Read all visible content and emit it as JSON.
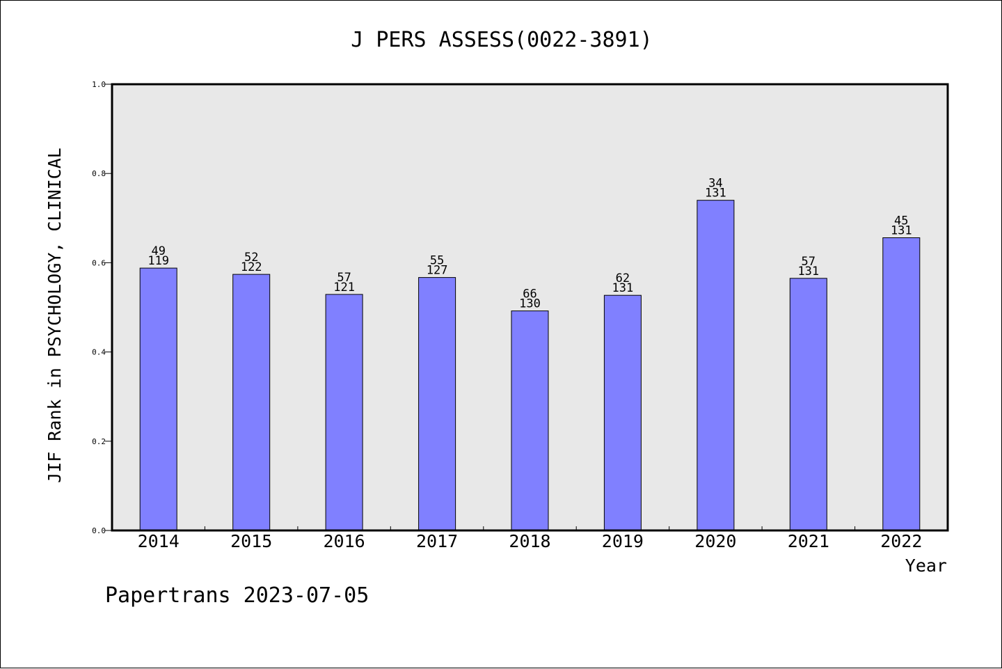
{
  "chart_data": {
    "type": "bar",
    "title": "J PERS ASSESS(0022-3891)",
    "xlabel": "Year",
    "ylabel": "JIF Rank in PSYCHOLOGY, CLINICAL",
    "ylim": [
      0.0,
      1.0
    ],
    "yticks": [
      "0.0",
      "0.2",
      "0.4",
      "0.6",
      "0.8",
      "1.0"
    ],
    "categories": [
      "2014",
      "2015",
      "2016",
      "2017",
      "2018",
      "2019",
      "2020",
      "2021",
      "2022"
    ],
    "values": [
      0.588,
      0.574,
      0.529,
      0.567,
      0.492,
      0.527,
      0.74,
      0.565,
      0.656
    ],
    "rank": [
      "49",
      "52",
      "57",
      "55",
      "66",
      "62",
      "34",
      "57",
      "45"
    ],
    "total": [
      "119",
      "122",
      "121",
      "127",
      "130",
      "131",
      "131",
      "131",
      "131"
    ],
    "grid": false,
    "colors": {
      "bar": "#8080ff",
      "plot_bg": "#e8e8e8",
      "axis": "#000000"
    }
  },
  "footer": "Papertrans 2023-07-05"
}
